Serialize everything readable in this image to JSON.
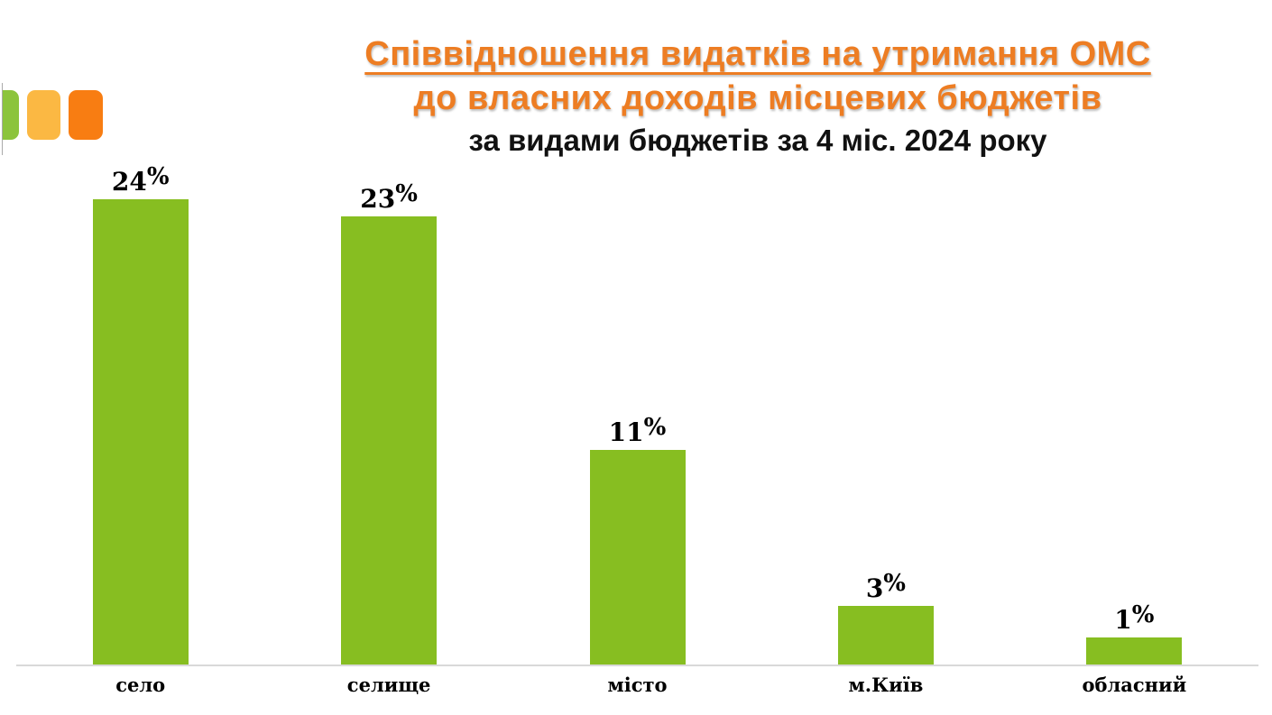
{
  "title": {
    "line1": "Співвідношення видатків на утримання ОМС",
    "line2": "до власних доходів місцевих бюджетів",
    "line3": "за видами бюджетів за 4 міс. 2024 року",
    "accent_color": "#ED7D23"
  },
  "logo": {
    "colors": {
      "green": "#8CC43C",
      "yellow": "#FBB843",
      "orange": "#F87D12"
    }
  },
  "chart_data": {
    "type": "bar",
    "title": "Співвідношення видатків на утримання ОМС до власних доходів місцевих бюджетів за видами бюджетів за 4 міс. 2024 року",
    "categories": [
      "село",
      "селище",
      "місто",
      "м.Київ",
      "обласний"
    ],
    "values": [
      24,
      23,
      11,
      3,
      1
    ],
    "value_labels": [
      "24%",
      "23%",
      "11%",
      "3%",
      "1%"
    ],
    "xlabel": "",
    "ylabel": "",
    "ylim": [
      0,
      24
    ],
    "grid": false,
    "legend": false,
    "bar_color": "#87BE21",
    "baseline_color": "#D9D9D9",
    "label_position": "above-bar"
  }
}
